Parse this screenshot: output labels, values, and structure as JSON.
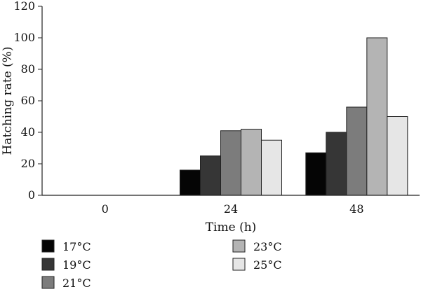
{
  "chart_data": {
    "type": "bar",
    "title": "",
    "xlabel": "Time (h)",
    "ylabel": "Hatching rate (%)",
    "ylim": [
      0,
      120
    ],
    "yticks": [
      "0",
      "20",
      "40",
      "60",
      "80",
      "100",
      "120"
    ],
    "categories": [
      "0",
      "24",
      "48"
    ],
    "grid": false,
    "legend_position": "bottom",
    "series": [
      {
        "name": "17°C",
        "color": "#050505",
        "values": [
          0,
          16,
          27
        ]
      },
      {
        "name": "19°C",
        "color": "#363636",
        "values": [
          0,
          25,
          40
        ]
      },
      {
        "name": "21°C",
        "color": "#7c7c7c",
        "values": [
          0,
          41,
          56
        ]
      },
      {
        "name": "23°C",
        "color": "#b4b4b4",
        "values": [
          0,
          42,
          100
        ]
      },
      {
        "name": "25°C",
        "color": "#e6e6e6",
        "values": [
          0,
          35,
          50
        ]
      }
    ]
  }
}
